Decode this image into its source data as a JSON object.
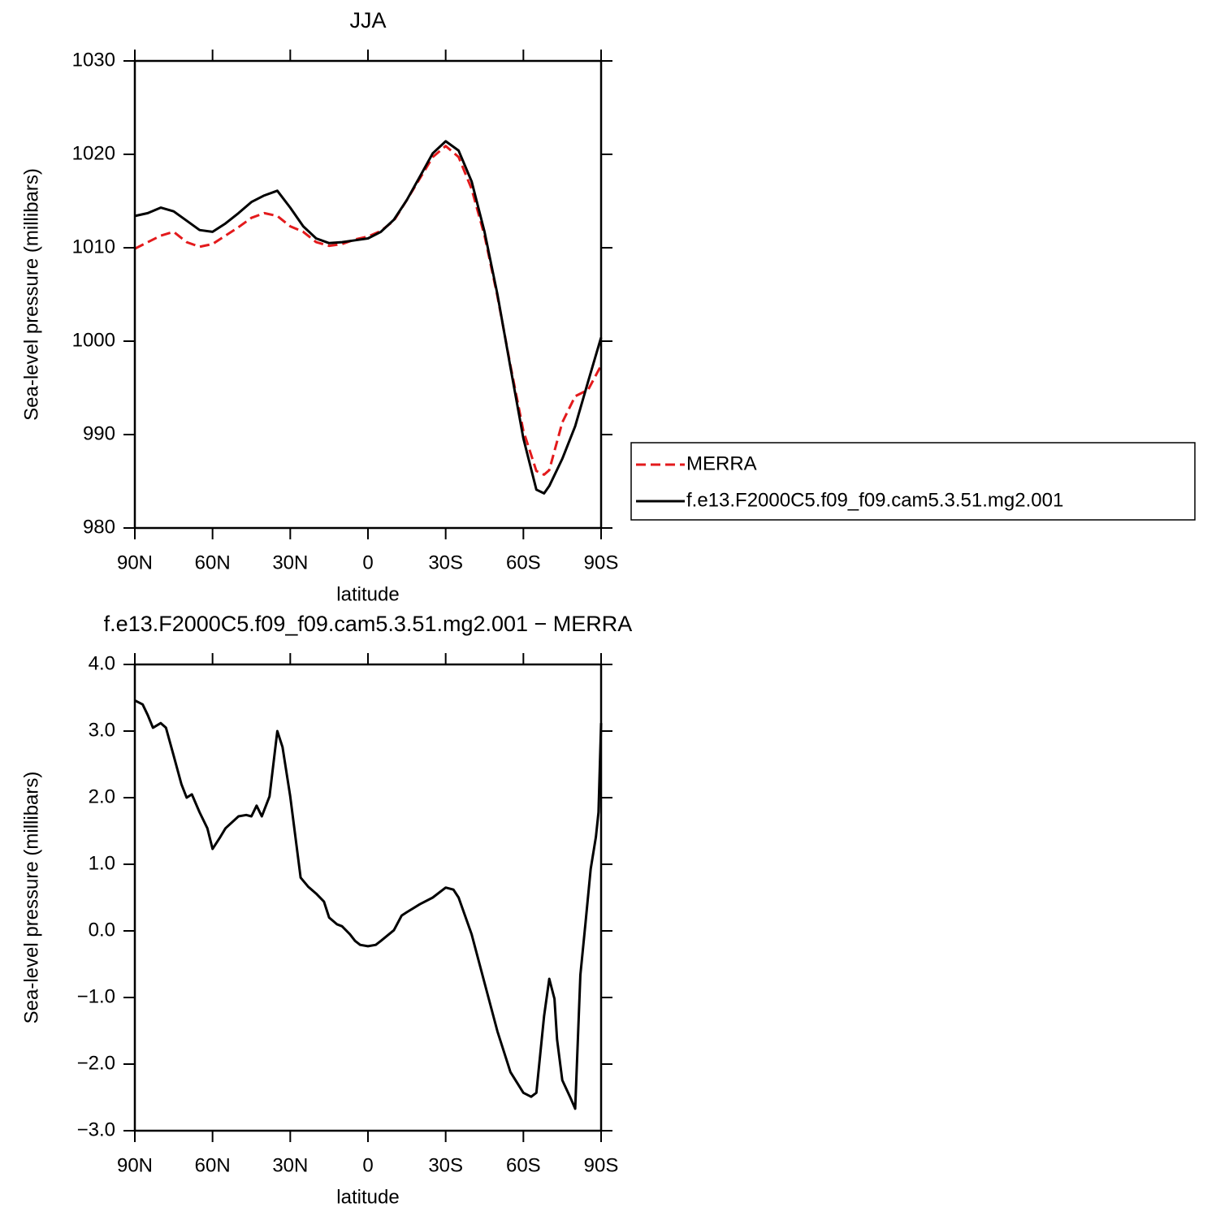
{
  "chart_data": [
    {
      "type": "line",
      "title": "JJA",
      "xlabel": "latitude",
      "ylabel": "Sea-level pressure (millibars)",
      "xlim": [
        90,
        -90
      ],
      "xticks": [
        {
          "value": 90,
          "label": "90N"
        },
        {
          "value": 60,
          "label": "60N"
        },
        {
          "value": 30,
          "label": "30N"
        },
        0,
        {
          "value": -30,
          "label": "30S"
        },
        {
          "value": -60,
          "label": "60S"
        },
        {
          "value": -90,
          "label": "90S"
        }
      ],
      "ylim": [
        980,
        1030
      ],
      "yticks": [
        980,
        990,
        1000,
        1010,
        1020,
        1030
      ],
      "legend": "right",
      "x": [
        90,
        85,
        80,
        75,
        70,
        65,
        60,
        55,
        50,
        45,
        40,
        35,
        30,
        25,
        20,
        15,
        10,
        5,
        0,
        -5,
        -10,
        -15,
        -20,
        -25,
        -30,
        -35,
        -40,
        -45,
        -50,
        -55,
        -60,
        -65,
        -68,
        -70,
        -75,
        -80,
        -85,
        -90
      ],
      "series": [
        {
          "name": "MERRA",
          "color": "#e31a1c",
          "dashed": true,
          "values": [
            1009.9,
            1010.6,
            1011.3,
            1011.7,
            1010.6,
            1010.1,
            1010.4,
            1011.3,
            1012.2,
            1013.2,
            1013.7,
            1013.4,
            1012.3,
            1011.7,
            1010.6,
            1010.2,
            1010.4,
            1010.9,
            1011.2,
            1011.8,
            1012.9,
            1015.1,
            1017.4,
            1019.7,
            1020.9,
            1019.7,
            1016.3,
            1011.3,
            1004.8,
            997.4,
            990.4,
            986.1,
            985.7,
            986.2,
            991.3,
            994.1,
            994.8,
            997.4
          ]
        },
        {
          "name": "f.e13.F2000C5.f09_f09.cam5.3.51.mg2.001",
          "color": "#000000",
          "dashed": false,
          "values": [
            1013.4,
            1013.7,
            1014.3,
            1013.9,
            1012.9,
            1011.9,
            1011.7,
            1012.6,
            1013.7,
            1014.9,
            1015.6,
            1016.1,
            1014.3,
            1012.3,
            1011.0,
            1010.5,
            1010.6,
            1010.8,
            1011.0,
            1011.7,
            1013.0,
            1015.1,
            1017.6,
            1020.1,
            1021.4,
            1020.4,
            1017.1,
            1011.7,
            1005.0,
            997.2,
            989.6,
            984.1,
            983.7,
            984.5,
            987.4,
            990.9,
            995.7,
            1000.4
          ]
        }
      ]
    },
    {
      "type": "line",
      "title": "f.e13.F2000C5.f09_f09.cam5.3.51.mg2.001  −  MERRA",
      "xlabel": "latitude",
      "ylabel": "Sea-level pressure (millibars)",
      "xlim": [
        90,
        -90
      ],
      "xticks": [
        {
          "value": 90,
          "label": "90N"
        },
        {
          "value": 60,
          "label": "60N"
        },
        {
          "value": 30,
          "label": "30N"
        },
        0,
        {
          "value": -30,
          "label": "30S"
        },
        {
          "value": -60,
          "label": "60S"
        },
        {
          "value": -90,
          "label": "90S"
        }
      ],
      "ylim": [
        -3,
        4
      ],
      "yticks": [
        {
          "value": -3,
          "label": "−3.0"
        },
        {
          "value": -2,
          "label": "−2.0"
        },
        {
          "value": -1,
          "label": "−1.0"
        },
        {
          "value": 0,
          "label": "0.0"
        },
        {
          "value": 1,
          "label": "1.0"
        },
        {
          "value": 2,
          "label": "2.0"
        },
        {
          "value": 3,
          "label": "3.0"
        },
        {
          "value": 4,
          "label": "4.0"
        }
      ],
      "x": [
        90,
        87,
        85,
        83,
        80,
        78,
        75,
        72,
        70,
        68,
        65,
        62,
        60,
        57,
        55,
        50,
        47,
        45,
        43,
        41,
        38,
        35,
        33,
        30,
        28,
        26,
        23,
        20,
        17,
        15,
        12,
        10,
        7,
        5,
        3,
        0,
        -3,
        -5,
        -10,
        -13,
        -15,
        -20,
        -25,
        -30,
        -33,
        -35,
        -40,
        -45,
        -50,
        -55,
        -60,
        -63,
        -65,
        -68,
        -70,
        -72,
        -73,
        -75,
        -78,
        -80,
        -82,
        -84,
        -86,
        -88,
        -89,
        -90
      ],
      "series": [
        {
          "name": null,
          "color": "#000000",
          "dashed": false,
          "values": [
            3.46,
            3.4,
            3.24,
            3.05,
            3.12,
            3.05,
            2.63,
            2.2,
            2.0,
            2.05,
            1.78,
            1.54,
            1.23,
            1.41,
            1.54,
            1.72,
            1.74,
            1.72,
            1.88,
            1.72,
            2.02,
            3.0,
            2.76,
            2.02,
            1.41,
            0.8,
            0.66,
            0.56,
            0.44,
            0.2,
            0.1,
            0.07,
            -0.05,
            -0.15,
            -0.21,
            -0.23,
            -0.21,
            -0.15,
            0.01,
            0.23,
            0.28,
            0.4,
            0.5,
            0.65,
            0.62,
            0.5,
            -0.05,
            -0.78,
            -1.51,
            -2.12,
            -2.43,
            -2.49,
            -2.43,
            -1.28,
            -0.72,
            -1.02,
            -1.63,
            -2.24,
            -2.49,
            -2.67,
            -0.66,
            0.13,
            0.93,
            1.41,
            1.78,
            3.12
          ]
        }
      ]
    }
  ]
}
